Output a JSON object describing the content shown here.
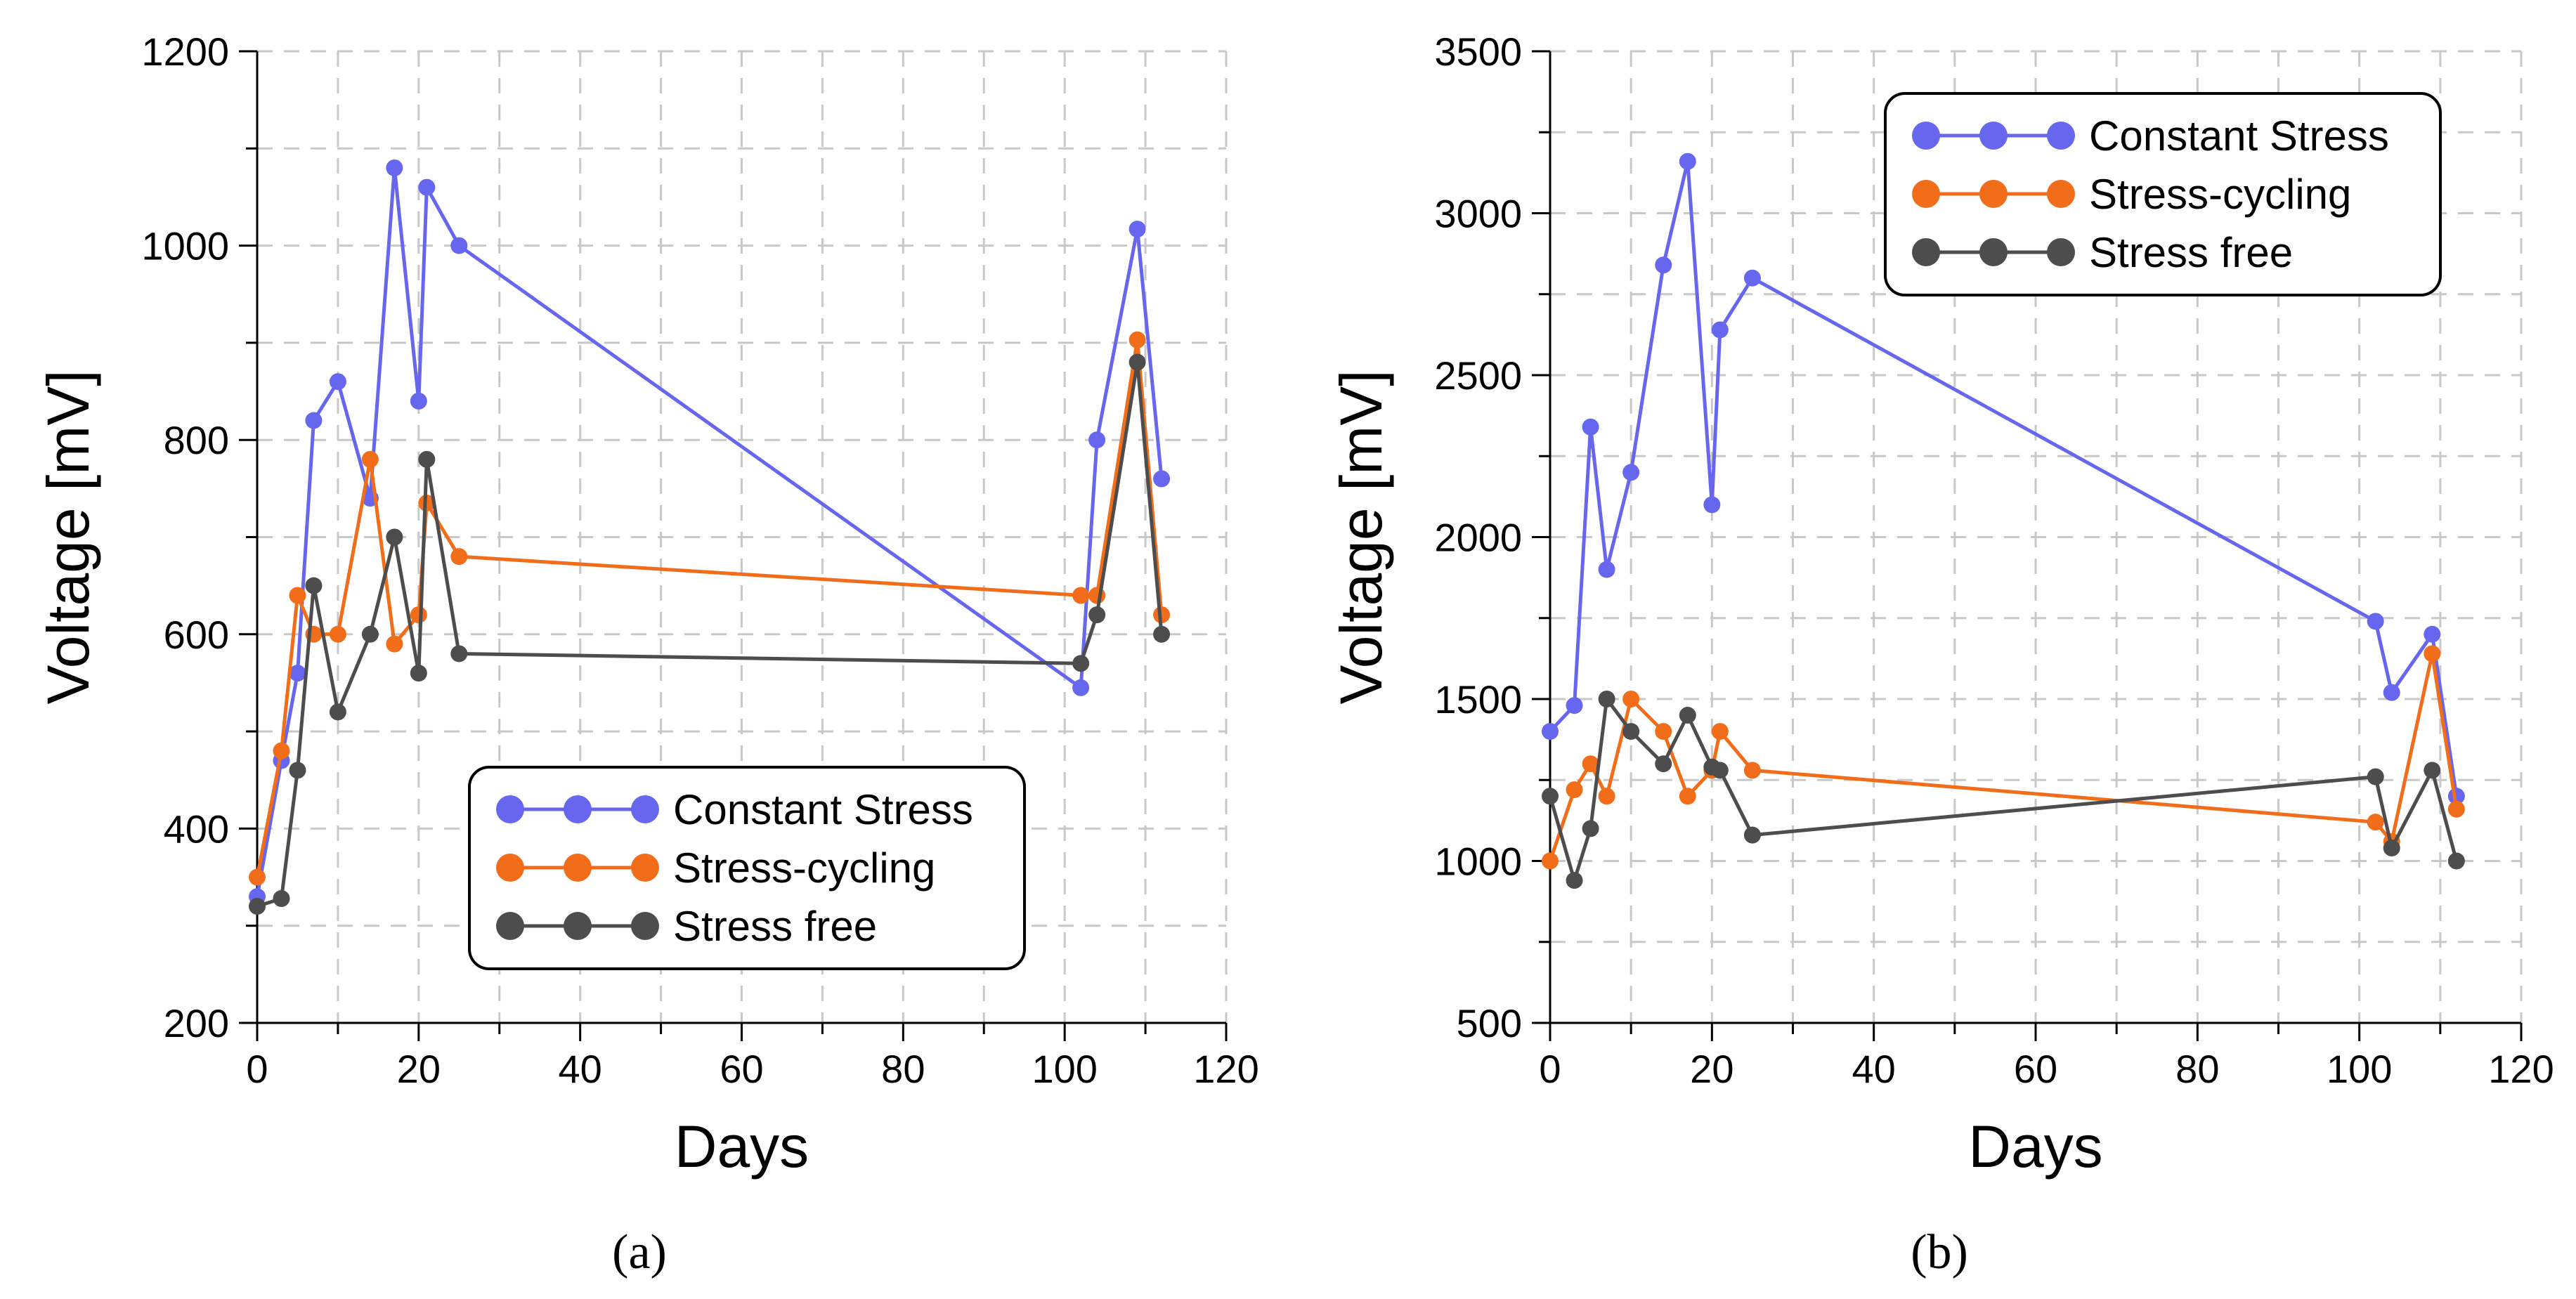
{
  "chart_data": [
    {
      "type": "line",
      "panel_label": "(a)",
      "xlabel": "Days",
      "ylabel": "Voltage [mV]",
      "xlim": [
        0,
        120
      ],
      "ylim": [
        200,
        1200
      ],
      "xticks": [
        0,
        20,
        40,
        60,
        80,
        100,
        120
      ],
      "yticks": [
        200,
        400,
        600,
        800,
        1000,
        1200
      ],
      "grid": true,
      "legend_position": "bottom-center",
      "series": [
        {
          "name": "Constant Stress",
          "color": "#6666ee",
          "x": [
            0,
            3,
            5,
            7,
            10,
            14,
            17,
            20,
            21,
            25,
            102,
            104,
            109,
            112
          ],
          "y": [
            330,
            470,
            560,
            820,
            860,
            740,
            1080,
            840,
            1060,
            1000,
            545,
            800,
            1017,
            760
          ]
        },
        {
          "name": "Stress-cycling",
          "color": "#f26d1a",
          "x": [
            0,
            3,
            5,
            7,
            10,
            14,
            17,
            20,
            21,
            25,
            102,
            104,
            109,
            112
          ],
          "y": [
            350,
            480,
            640,
            600,
            600,
            780,
            590,
            620,
            735,
            680,
            640,
            640,
            903,
            620
          ]
        },
        {
          "name": "Stress free",
          "color": "#4d4d4d",
          "x": [
            0,
            3,
            5,
            7,
            10,
            14,
            17,
            20,
            21,
            25,
            102,
            104,
            109,
            112
          ],
          "y": [
            320,
            328,
            460,
            650,
            520,
            600,
            700,
            560,
            780,
            580,
            570,
            620,
            880,
            600
          ]
        }
      ]
    },
    {
      "type": "line",
      "panel_label": "(b)",
      "xlabel": "Days",
      "ylabel": "Voltage [mV]",
      "xlim": [
        0,
        120
      ],
      "ylim": [
        500,
        3500
      ],
      "xticks": [
        0,
        20,
        40,
        60,
        80,
        100,
        120
      ],
      "yticks": [
        500,
        1000,
        1500,
        2000,
        2500,
        3000,
        3500
      ],
      "grid": true,
      "legend_position": "top-center",
      "series": [
        {
          "name": "Constant Stress",
          "color": "#6666ee",
          "x": [
            0,
            3,
            5,
            7,
            10,
            14,
            17,
            20,
            21,
            25,
            102,
            104,
            109,
            112
          ],
          "y": [
            1400,
            1480,
            2340,
            1900,
            2200,
            2840,
            3160,
            2100,
            2640,
            2800,
            1740,
            1520,
            1700,
            1200
          ]
        },
        {
          "name": "Stress-cycling",
          "color": "#f26d1a",
          "x": [
            0,
            3,
            5,
            7,
            10,
            14,
            17,
            20,
            21,
            25,
            102,
            104,
            109,
            112
          ],
          "y": [
            1000,
            1220,
            1300,
            1200,
            1500,
            1400,
            1200,
            1280,
            1400,
            1280,
            1120,
            1060,
            1640,
            1160
          ]
        },
        {
          "name": "Stress free",
          "color": "#4d4d4d",
          "x": [
            0,
            3,
            5,
            7,
            10,
            14,
            17,
            20,
            21,
            25,
            102,
            104,
            109,
            112
          ],
          "y": [
            1200,
            940,
            1100,
            1500,
            1400,
            1300,
            1450,
            1290,
            1280,
            1080,
            1260,
            1040,
            1280,
            1000
          ]
        }
      ]
    }
  ]
}
